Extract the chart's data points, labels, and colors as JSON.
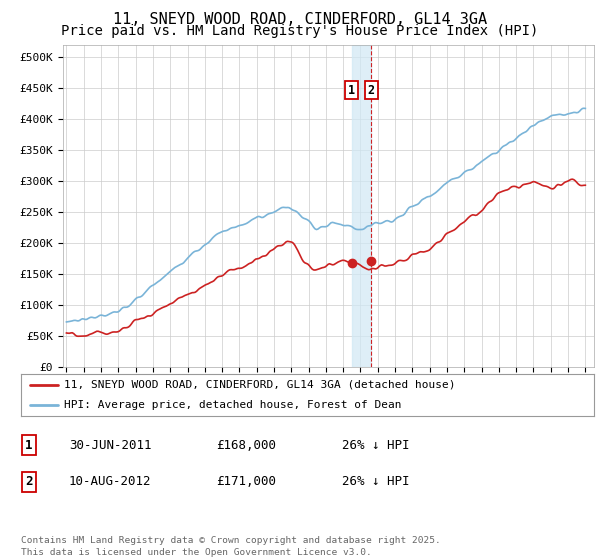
{
  "title": "11, SNEYD WOOD ROAD, CINDERFORD, GL14 3GA",
  "subtitle": "Price paid vs. HM Land Registry's House Price Index (HPI)",
  "ylabel_ticks": [
    "£0",
    "£50K",
    "£100K",
    "£150K",
    "£200K",
    "£250K",
    "£300K",
    "£350K",
    "£400K",
    "£450K",
    "£500K"
  ],
  "ytick_values": [
    0,
    50000,
    100000,
    150000,
    200000,
    250000,
    300000,
    350000,
    400000,
    450000,
    500000
  ],
  "xlim_start": 1994.8,
  "xlim_end": 2025.5,
  "ylim": [
    0,
    520000
  ],
  "hpi_color": "#7ab4d8",
  "price_color": "#cc2222",
  "vline1_x": 2011.49,
  "vline2_x": 2012.61,
  "marker1_x": 2011.49,
  "marker1_y": 168000,
  "marker2_x": 2012.61,
  "marker2_y": 171000,
  "legend_line1": "11, SNEYD WOOD ROAD, CINDERFORD, GL14 3GA (detached house)",
  "legend_line2": "HPI: Average price, detached house, Forest of Dean",
  "table_row1_num": "1",
  "table_row1_date": "30-JUN-2011",
  "table_row1_price": "£168,000",
  "table_row1_hpi": "26% ↓ HPI",
  "table_row2_num": "2",
  "table_row2_date": "10-AUG-2012",
  "table_row2_price": "£171,000",
  "table_row2_hpi": "26% ↓ HPI",
  "footnote": "Contains HM Land Registry data © Crown copyright and database right 2025.\nThis data is licensed under the Open Government Licence v3.0.",
  "background_color": "#ffffff",
  "grid_color": "#cccccc",
  "title_fontsize": 11,
  "subtitle_fontsize": 10
}
